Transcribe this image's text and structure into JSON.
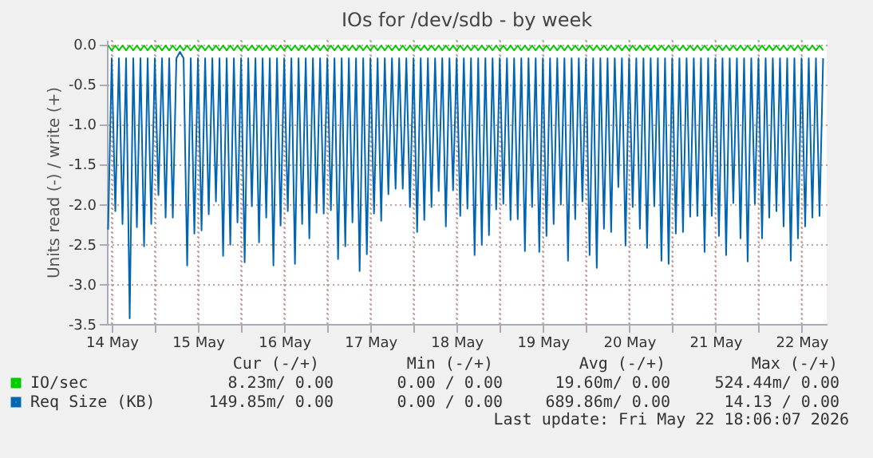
{
  "chart_data": {
    "type": "line",
    "title": "IOs for /dev/sdb - by week",
    "ylabel": "Units read (-) / write (+)",
    "x": [
      "2026-05-14T11:00",
      "2026-05-14T12:00",
      "2026-05-14T13:00",
      "2026-05-14T14:00",
      "2026-05-14T15:00",
      "2026-05-14T16:00",
      "2026-05-14T17:00",
      "2026-05-14T18:00",
      "2026-05-14T19:00",
      "2026-05-14T20:00",
      "2026-05-14T21:00",
      "2026-05-14T22:00",
      "2026-05-14T23:00",
      "2026-05-15T00:00",
      "2026-05-15T01:00",
      "2026-05-15T02:00",
      "2026-05-15T03:00",
      "2026-05-15T04:00",
      "2026-05-15T05:00",
      "2026-05-15T06:00",
      "2026-05-15T07:00",
      "2026-05-15T08:00",
      "2026-05-15T09:00",
      "2026-05-15T10:00",
      "2026-05-15T11:00",
      "2026-05-15T12:00",
      "2026-05-15T13:00",
      "2026-05-15T14:00",
      "2026-05-15T15:00",
      "2026-05-15T16:00",
      "2026-05-15T17:00",
      "2026-05-15T18:00",
      "2026-05-15T19:00",
      "2026-05-15T20:00",
      "2026-05-15T21:00",
      "2026-05-15T22:00",
      "2026-05-15T23:00",
      "2026-05-16T00:00",
      "2026-05-16T01:00",
      "2026-05-16T02:00",
      "2026-05-16T03:00",
      "2026-05-16T04:00",
      "2026-05-16T05:00",
      "2026-05-16T06:00",
      "2026-05-16T07:00",
      "2026-05-16T08:00",
      "2026-05-16T09:00",
      "2026-05-16T10:00",
      "2026-05-16T11:00",
      "2026-05-16T12:00",
      "2026-05-16T13:00",
      "2026-05-16T14:00",
      "2026-05-16T15:00",
      "2026-05-16T16:00",
      "2026-05-16T17:00",
      "2026-05-16T18:00",
      "2026-05-16T19:00",
      "2026-05-16T20:00",
      "2026-05-16T21:00",
      "2026-05-16T22:00",
      "2026-05-16T23:00",
      "2026-05-17T00:00",
      "2026-05-17T01:00",
      "2026-05-17T02:00",
      "2026-05-17T03:00",
      "2026-05-17T04:00",
      "2026-05-17T05:00",
      "2026-05-17T06:00",
      "2026-05-17T07:00",
      "2026-05-17T08:00",
      "2026-05-17T09:00",
      "2026-05-17T10:00",
      "2026-05-17T11:00",
      "2026-05-17T12:00",
      "2026-05-17T13:00",
      "2026-05-17T14:00",
      "2026-05-17T15:00",
      "2026-05-17T16:00",
      "2026-05-17T17:00",
      "2026-05-17T18:00",
      "2026-05-17T19:00",
      "2026-05-17T20:00",
      "2026-05-17T21:00",
      "2026-05-17T22:00",
      "2026-05-17T23:00",
      "2026-05-18T00:00",
      "2026-05-18T01:00",
      "2026-05-18T02:00",
      "2026-05-18T03:00",
      "2026-05-18T04:00",
      "2026-05-18T05:00",
      "2026-05-18T06:00",
      "2026-05-18T07:00",
      "2026-05-18T08:00",
      "2026-05-18T09:00",
      "2026-05-18T10:00",
      "2026-05-18T11:00",
      "2026-05-18T12:00",
      "2026-05-18T13:00",
      "2026-05-18T14:00",
      "2026-05-18T15:00",
      "2026-05-18T16:00",
      "2026-05-18T17:00",
      "2026-05-18T18:00",
      "2026-05-18T19:00",
      "2026-05-18T20:00",
      "2026-05-18T21:00",
      "2026-05-18T22:00",
      "2026-05-18T23:00",
      "2026-05-19T00:00",
      "2026-05-19T01:00",
      "2026-05-19T02:00",
      "2026-05-19T03:00",
      "2026-05-19T04:00",
      "2026-05-19T05:00",
      "2026-05-19T06:00",
      "2026-05-19T07:00",
      "2026-05-19T08:00",
      "2026-05-19T09:00",
      "2026-05-19T10:00",
      "2026-05-19T11:00",
      "2026-05-19T12:00",
      "2026-05-19T13:00",
      "2026-05-19T14:00",
      "2026-05-19T15:00",
      "2026-05-19T16:00",
      "2026-05-19T17:00",
      "2026-05-19T18:00",
      "2026-05-19T19:00",
      "2026-05-19T20:00",
      "2026-05-19T21:00",
      "2026-05-19T22:00",
      "2026-05-19T23:00",
      "2026-05-20T00:00",
      "2026-05-20T01:00",
      "2026-05-20T02:00",
      "2026-05-20T03:00",
      "2026-05-20T04:00",
      "2026-05-20T05:00",
      "2026-05-20T06:00",
      "2026-05-20T07:00",
      "2026-05-20T08:00",
      "2026-05-20T09:00",
      "2026-05-20T10:00",
      "2026-05-20T11:00",
      "2026-05-20T12:00",
      "2026-05-20T13:00",
      "2026-05-20T14:00",
      "2026-05-20T15:00",
      "2026-05-20T16:00",
      "2026-05-20T17:00",
      "2026-05-20T18:00",
      "2026-05-20T19:00",
      "2026-05-20T20:00",
      "2026-05-20T21:00",
      "2026-05-20T22:00",
      "2026-05-20T23:00",
      "2026-05-21T00:00",
      "2026-05-21T01:00",
      "2026-05-21T02:00",
      "2026-05-21T03:00",
      "2026-05-21T04:00",
      "2026-05-21T05:00",
      "2026-05-21T06:00",
      "2026-05-21T07:00",
      "2026-05-21T08:00",
      "2026-05-21T09:00",
      "2026-05-21T10:00",
      "2026-05-21T11:00",
      "2026-05-21T12:00",
      "2026-05-21T13:00",
      "2026-05-21T14:00",
      "2026-05-21T15:00",
      "2026-05-21T16:00",
      "2026-05-21T17:00",
      "2026-05-21T18:00",
      "2026-05-21T19:00",
      "2026-05-21T20:00",
      "2026-05-21T21:00",
      "2026-05-21T22:00",
      "2026-05-21T23:00",
      "2026-05-22T00:00",
      "2026-05-22T01:00",
      "2026-05-22T02:00",
      "2026-05-22T03:00",
      "2026-05-22T04:00",
      "2026-05-22T05:00",
      "2026-05-22T06:00",
      "2026-05-22T07:00",
      "2026-05-22T08:00",
      "2026-05-22T09:00",
      "2026-05-22T10:00",
      "2026-05-22T11:00",
      "2026-05-22T12:00",
      "2026-05-22T13:00",
      "2026-05-22T14:00",
      "2026-05-22T15:00",
      "2026-05-22T16:00",
      "2026-05-22T17:00",
      "2026-05-22T18:00"
    ],
    "series": [
      {
        "name": "IO/sec",
        "color": "#00cc00",
        "values": [
          -0.02,
          -0.08,
          -0.02,
          -0.08,
          -0.02,
          -0.08,
          -0.02,
          -0.08,
          -0.02,
          -0.08,
          -0.02,
          -0.08,
          -0.02,
          -0.08,
          -0.02,
          -0.08,
          -0.02,
          -0.08,
          -0.02,
          -0.08,
          -0.02,
          -0.08,
          -0.02,
          -0.08,
          -0.02,
          -0.08,
          -0.02,
          -0.08,
          -0.02,
          -0.08,
          -0.02,
          -0.08,
          -0.02,
          -0.08,
          -0.02,
          -0.08,
          -0.02,
          -0.08,
          -0.02,
          -0.08,
          -0.02,
          -0.08,
          -0.02,
          -0.08,
          -0.02,
          -0.08,
          -0.02,
          -0.08,
          -0.02,
          -0.08,
          -0.02,
          -0.08,
          -0.02,
          -0.08,
          -0.02,
          -0.08,
          -0.02,
          -0.08,
          -0.02,
          -0.08,
          -0.02,
          -0.08,
          -0.02,
          -0.08,
          -0.02,
          -0.08,
          -0.02,
          -0.08,
          -0.02,
          -0.08,
          -0.02,
          -0.08,
          -0.02,
          -0.08,
          -0.02,
          -0.08,
          -0.02,
          -0.08,
          -0.02,
          -0.08,
          -0.02,
          -0.08,
          -0.02,
          -0.08,
          -0.02,
          -0.08,
          -0.02,
          -0.08,
          -0.02,
          -0.08,
          -0.02,
          -0.08,
          -0.02,
          -0.08,
          -0.02,
          -0.08,
          -0.02,
          -0.08,
          -0.02,
          -0.08,
          -0.02,
          -0.08,
          -0.02,
          -0.08,
          -0.02,
          -0.08,
          -0.02,
          -0.08,
          -0.02,
          -0.08,
          -0.02,
          -0.08,
          -0.02,
          -0.08,
          -0.02,
          -0.08,
          -0.02,
          -0.08,
          -0.02,
          -0.08,
          -0.02,
          -0.08,
          -0.02,
          -0.08,
          -0.02,
          -0.08,
          -0.02,
          -0.08,
          -0.02,
          -0.08,
          -0.02,
          -0.08,
          -0.02,
          -0.08,
          -0.02,
          -0.08,
          -0.02,
          -0.08,
          -0.02,
          -0.08,
          -0.02,
          -0.08,
          -0.02,
          -0.08,
          -0.02,
          -0.08,
          -0.02,
          -0.08,
          -0.02,
          -0.08,
          -0.02,
          -0.08,
          -0.02,
          -0.08,
          -0.02,
          -0.08,
          -0.02,
          -0.08,
          -0.02,
          -0.08,
          -0.02,
          -0.08,
          -0.02,
          -0.08,
          -0.02,
          -0.08,
          -0.02,
          -0.08,
          -0.02,
          -0.08,
          -0.02,
          -0.08,
          -0.02,
          -0.08,
          -0.02,
          -0.08,
          -0.02,
          -0.08,
          -0.02,
          -0.08,
          -0.02,
          -0.08,
          -0.02,
          -0.08,
          -0.02,
          -0.08,
          -0.02,
          -0.08,
          -0.02,
          -0.08,
          -0.02,
          -0.08,
          -0.02,
          -0.08,
          -0.02,
          -0.08,
          -0.02,
          -0.08,
          -0.02,
          -0.08
        ]
      },
      {
        "name": "Req Size (KB)",
        "color": "#0066b3",
        "values": [
          -2.32,
          -0.18,
          -2.09,
          -0.18,
          -2.25,
          -0.18,
          -3.43,
          -0.18,
          -2.29,
          -0.18,
          -2.53,
          -0.18,
          -2.25,
          -0.18,
          -1.89,
          -0.18,
          -2.17,
          -0.18,
          -2.17,
          -0.18,
          -0.1,
          -0.18,
          -2.77,
          -0.18,
          -2.37,
          -0.18,
          -2.33,
          -0.18,
          -2.13,
          -0.18,
          -1.97,
          -0.18,
          -2.65,
          -0.18,
          -2.51,
          -0.18,
          -2.23,
          -0.18,
          -2.73,
          -0.18,
          -2.03,
          -0.18,
          -2.48,
          -0.18,
          -2.17,
          -0.18,
          -2.77,
          -0.18,
          -2.27,
          -0.18,
          -2.09,
          -0.18,
          -2.75,
          -0.18,
          -2.25,
          -0.18,
          -2.43,
          -0.18,
          -2.11,
          -0.18,
          -2.12,
          -0.18,
          -2.08,
          -0.18,
          -2.69,
          -0.18,
          -2.53,
          -0.18,
          -2.23,
          -0.18,
          -2.84,
          -0.18,
          -2.63,
          -0.18,
          -2.12,
          -0.18,
          -2.21,
          -0.18,
          -1.88,
          -0.18,
          -1.81,
          -0.18,
          -1.81,
          -0.18,
          -2.04,
          -0.18,
          -2.35,
          -0.18,
          -2.2,
          -0.18,
          -2.04,
          -0.18,
          -1.84,
          -0.18,
          -2.28,
          -0.18,
          -1.83,
          -0.18,
          -2.15,
          -0.18,
          -2.06,
          -0.18,
          -2.64,
          -0.18,
          -2.51,
          -0.18,
          -2.39,
          -0.18,
          -2.07,
          -0.18,
          -2.0,
          -0.18,
          -2.2,
          -0.18,
          -2.19,
          -0.18,
          -2.59,
          -0.18,
          -2.04,
          -0.18,
          -2.6,
          -0.18,
          -2.4,
          -0.18,
          -2.25,
          -0.18,
          -2.01,
          -0.18,
          -2.71,
          -0.18,
          -2.19,
          -0.18,
          -1.97,
          -0.18,
          -2.64,
          -0.18,
          -2.8,
          -0.18,
          -2.31,
          -0.18,
          -2.35,
          -0.18,
          -1.79,
          -0.18,
          -2.52,
          -0.18,
          -2.04,
          -0.18,
          -2.31,
          -0.18,
          -2.55,
          -0.18,
          -2.03,
          -0.18,
          -2.71,
          -0.18,
          -2.75,
          -0.18,
          -2.37,
          -0.18,
          -2.35,
          -0.18,
          -2.16,
          -0.18,
          -2.15,
          -0.18,
          -2.6,
          -0.18,
          -2.15,
          -0.18,
          -2.4,
          -0.18,
          -2.64,
          -0.18,
          -1.99,
          -0.18,
          -2.43,
          -0.18,
          -2.72,
          -0.18,
          -2.0,
          -0.18,
          -2.43,
          -0.18,
          -2.17,
          -0.18,
          -2.09,
          -0.18,
          -2.28,
          -0.18,
          -2.71,
          -0.18,
          -2.43,
          -0.18,
          -2.28,
          -0.18,
          -2.17,
          -0.18,
          -2.15,
          -0.18
        ]
      }
    ],
    "xlim": [
      "2026-05-14T10:40",
      "2026-05-22T19:00"
    ],
    "xticks": [
      {
        "value": "2026-05-14T12:00",
        "label": "14 May"
      },
      {
        "value": "2026-05-15T00:00",
        "label": null
      },
      {
        "value": "2026-05-15T12:00",
        "label": "15 May"
      },
      {
        "value": "2026-05-16T00:00",
        "label": null
      },
      {
        "value": "2026-05-16T12:00",
        "label": "16 May"
      },
      {
        "value": "2026-05-17T00:00",
        "label": null
      },
      {
        "value": "2026-05-17T12:00",
        "label": "17 May"
      },
      {
        "value": "2026-05-18T00:00",
        "label": null
      },
      {
        "value": "2026-05-18T12:00",
        "label": "18 May"
      },
      {
        "value": "2026-05-19T00:00",
        "label": null
      },
      {
        "value": "2026-05-19T12:00",
        "label": "19 May"
      },
      {
        "value": "2026-05-20T00:00",
        "label": null
      },
      {
        "value": "2026-05-20T12:00",
        "label": "20 May"
      },
      {
        "value": "2026-05-21T00:00",
        "label": null
      },
      {
        "value": "2026-05-21T12:00",
        "label": "21 May"
      },
      {
        "value": "2026-05-22T00:00",
        "label": null
      },
      {
        "value": "2026-05-22T12:00",
        "label": "22 May"
      }
    ],
    "ylim": [
      -3.5,
      0.05
    ],
    "yticks": [
      {
        "value": -3.5,
        "label": "-3.5"
      },
      {
        "value": -3,
        "label": "-3.0"
      },
      {
        "value": -2.5,
        "label": "-2.5"
      },
      {
        "value": -2,
        "label": "-2.0"
      },
      {
        "value": -1.5,
        "label": "-1.5"
      },
      {
        "value": -1,
        "label": "-1.0"
      },
      {
        "value": -0.5,
        "label": "-0.5"
      },
      {
        "value": 0,
        "label": "0.0"
      }
    ],
    "grid": true,
    "legend": "bottom left",
    "annotations": [
      "Cur (-/+)",
      "Min (-/+)",
      "Avg (-/+)",
      "Max (-/+)",
      "8.23m/  0.00",
      "0.00 /  0.00",
      "19.60m/  0.00",
      "524.44m/  0.00",
      "149.85m/  0.00",
      "0.00 /  0.00",
      "689.86m/  0.00",
      "14.13 /  0.00",
      "Last update: Fri May 22 18:06:07 2026"
    ]
  }
}
